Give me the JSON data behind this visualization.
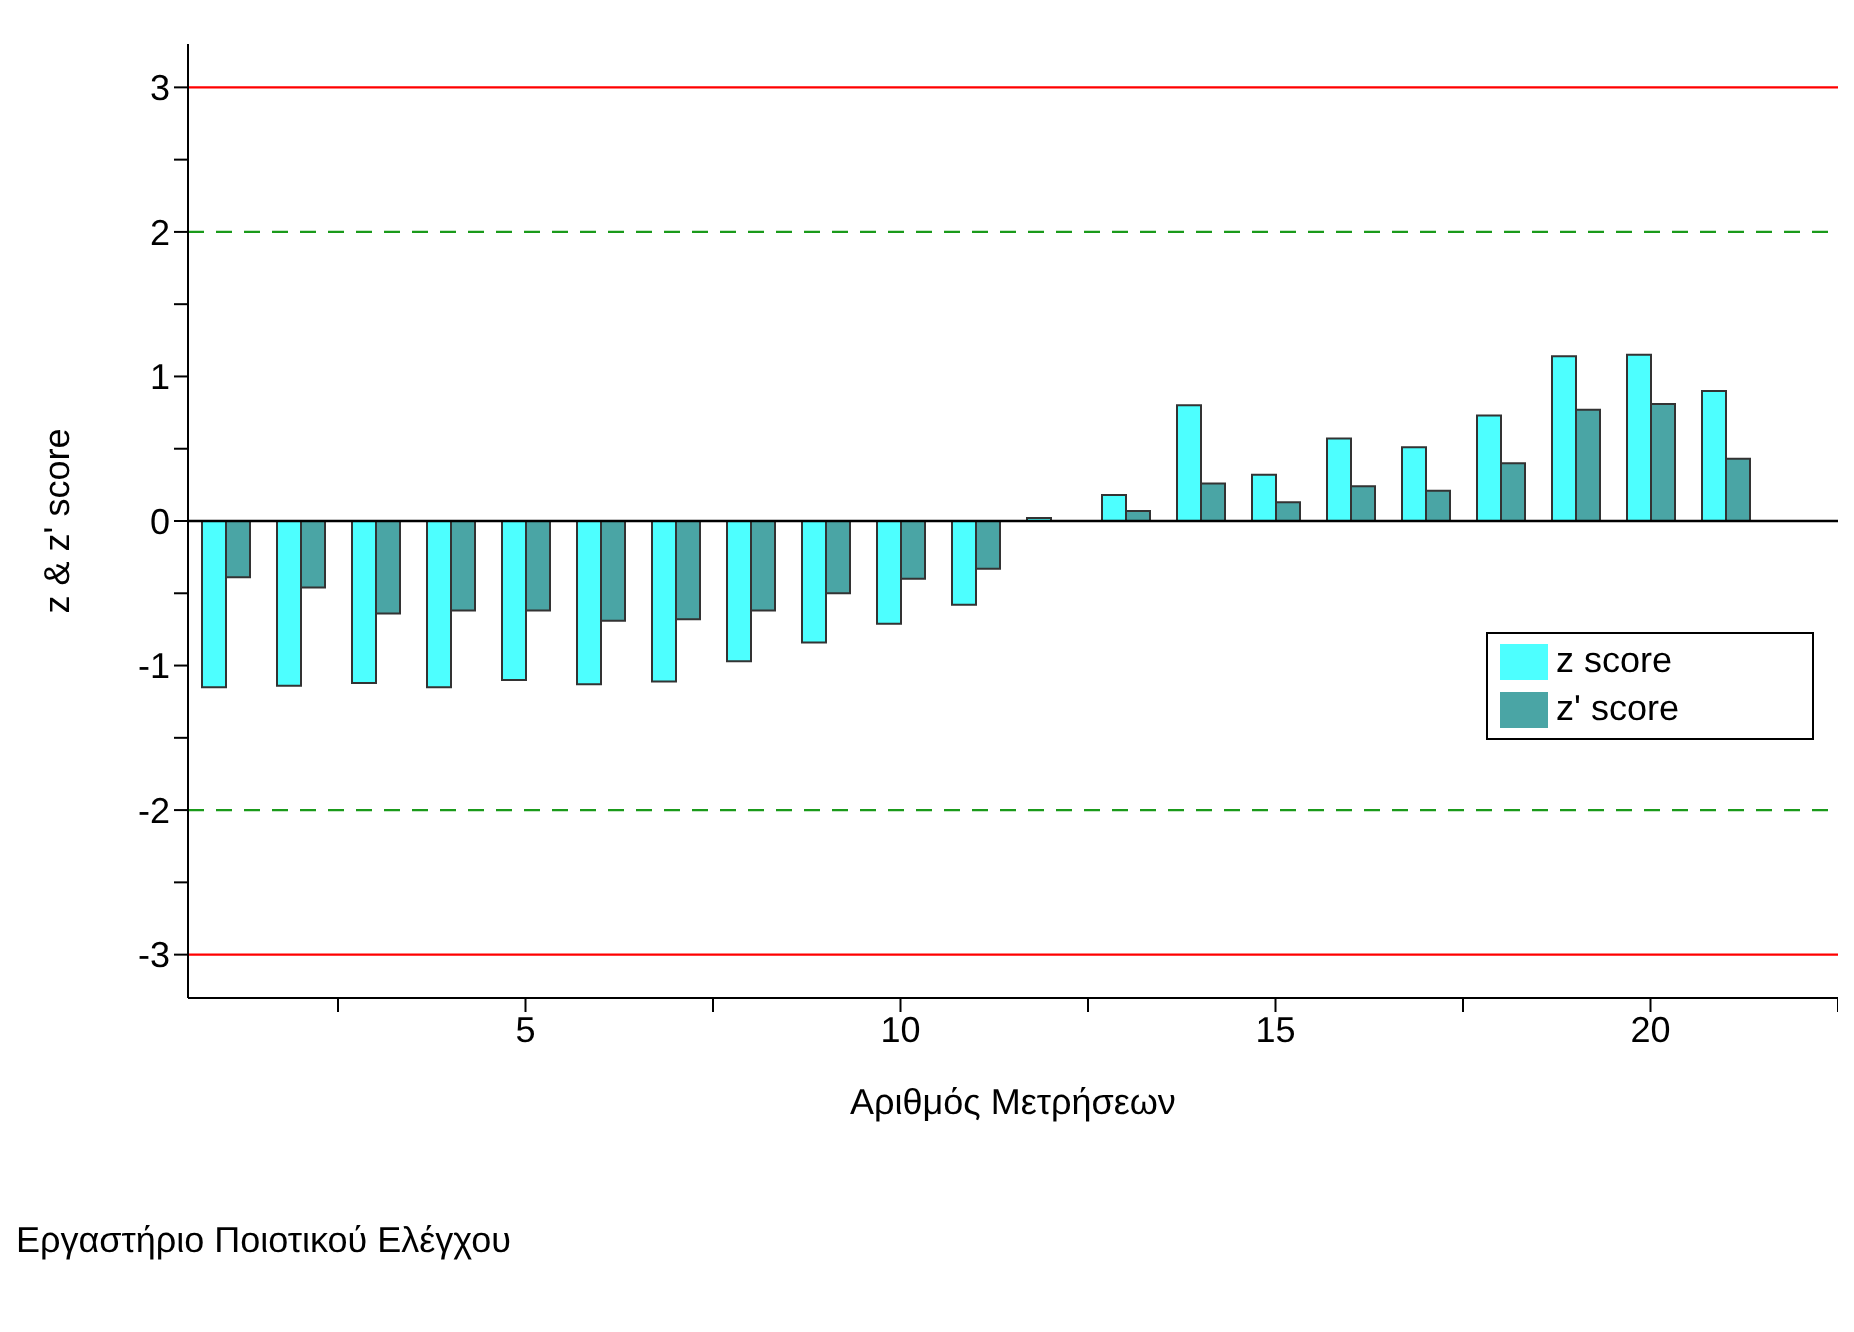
{
  "chart_data": {
    "type": "bar",
    "xlabel": "Αριθμός Μετρήσεων",
    "ylabel": "z & z' score",
    "x": [
      1,
      2,
      3,
      4,
      5,
      6,
      7,
      8,
      9,
      10,
      11,
      12,
      13,
      14,
      15,
      16,
      17,
      18,
      19,
      20,
      21
    ],
    "series": [
      {
        "name": "z score",
        "color": "#4dffff",
        "values": [
          -1.15,
          -1.14,
          -1.12,
          -1.15,
          -1.1,
          -1.13,
          -1.11,
          -0.97,
          -0.84,
          -0.71,
          -0.58,
          0.02,
          0.18,
          0.8,
          0.32,
          0.57,
          0.51,
          0.73,
          1.14,
          1.15,
          0.9
        ]
      },
      {
        "name": "z' score",
        "color": "#4aa5a5",
        "values": [
          -0.39,
          -0.46,
          -0.64,
          -0.62,
          -0.62,
          -0.69,
          -0.68,
          -0.62,
          -0.5,
          -0.4,
          -0.33,
          0.0,
          0.07,
          0.26,
          0.13,
          0.24,
          0.21,
          0.4,
          0.77,
          0.81,
          0.43
        ]
      }
    ],
    "xlim": [
      0.5,
      22.5
    ],
    "xticks": [
      {
        "value": 2.5,
        "label": null
      },
      5,
      {
        "value": 7.5,
        "label": null
      },
      10,
      {
        "value": 12.5,
        "label": null
      },
      15,
      {
        "value": 17.5,
        "label": null
      },
      20,
      {
        "value": 22.5,
        "label": null
      }
    ],
    "ylim": [
      -3.3,
      3.3
    ],
    "yticks": [
      -3,
      {
        "value": -2.5,
        "label": null
      },
      -2,
      {
        "value": -1.5,
        "label": null
      },
      -1,
      {
        "value": -0.5,
        "label": null
      },
      0,
      {
        "value": 0.5,
        "label": null
      },
      1,
      {
        "value": 1.5,
        "label": null
      },
      2,
      {
        "value": 2.5,
        "label": null
      },
      3
    ],
    "ref_lines": [
      {
        "axis": "y",
        "value": 3,
        "color": "#ff0000",
        "line_style": "solid"
      },
      {
        "axis": "y",
        "value": -3,
        "color": "#ff0000",
        "line_style": "solid"
      },
      {
        "axis": "y",
        "value": 2,
        "color": "#1a9a1a",
        "line_style": "dashed"
      },
      {
        "axis": "y",
        "value": -2,
        "color": "#1a9a1a",
        "line_style": "dashed"
      },
      {
        "axis": "y",
        "value": 0,
        "color": "#000000",
        "line_style": "solid"
      }
    ],
    "legend": "right",
    "grid": false,
    "annotations": [
      "Εργαστήριο Ποιοτικού Ελέγχου"
    ]
  }
}
